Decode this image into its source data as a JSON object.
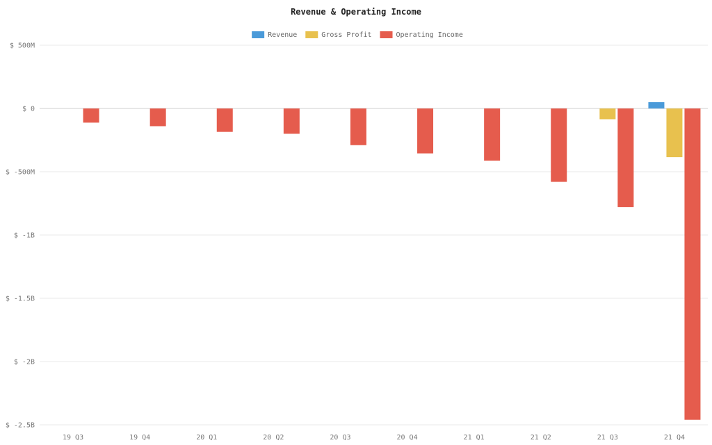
{
  "chart_data": {
    "type": "bar",
    "title": "Revenue & Operating Income",
    "xlabel": "",
    "ylabel": "",
    "categories": [
      "19 Q3",
      "19 Q4",
      "20 Q1",
      "20 Q2",
      "20 Q3",
      "20 Q4",
      "21 Q1",
      "21 Q2",
      "21 Q3",
      "21 Q4"
    ],
    "series": [
      {
        "name": "Revenue",
        "color": "#4a9ad9",
        "values": [
          0,
          0,
          0,
          0,
          0,
          0,
          0,
          0,
          0,
          50
        ]
      },
      {
        "name": "Gross Profit",
        "color": "#e8c14e",
        "values": [
          0,
          0,
          0,
          0,
          0,
          0,
          0,
          0,
          -85,
          -385
        ]
      },
      {
        "name": "Operating Income",
        "color": "#e55c4d",
        "values": [
          -112,
          -140,
          -185,
          -200,
          -290,
          -355,
          -412,
          -580,
          -780,
          -2460
        ]
      }
    ],
    "ylim": [
      -2500,
      500
    ],
    "yticks": [
      {
        "value": 500,
        "label": "$ 500M"
      },
      {
        "value": 0,
        "label": "$ 0"
      },
      {
        "value": -500,
        "label": "$ -500M"
      },
      {
        "value": -1000,
        "label": "$ -1B"
      },
      {
        "value": -1500,
        "label": "$ -1.5B"
      },
      {
        "value": -2000,
        "label": "$ -2B"
      },
      {
        "value": -2500,
        "label": "$ -2.5B"
      }
    ],
    "grid": true,
    "legend_position": "top-center"
  }
}
